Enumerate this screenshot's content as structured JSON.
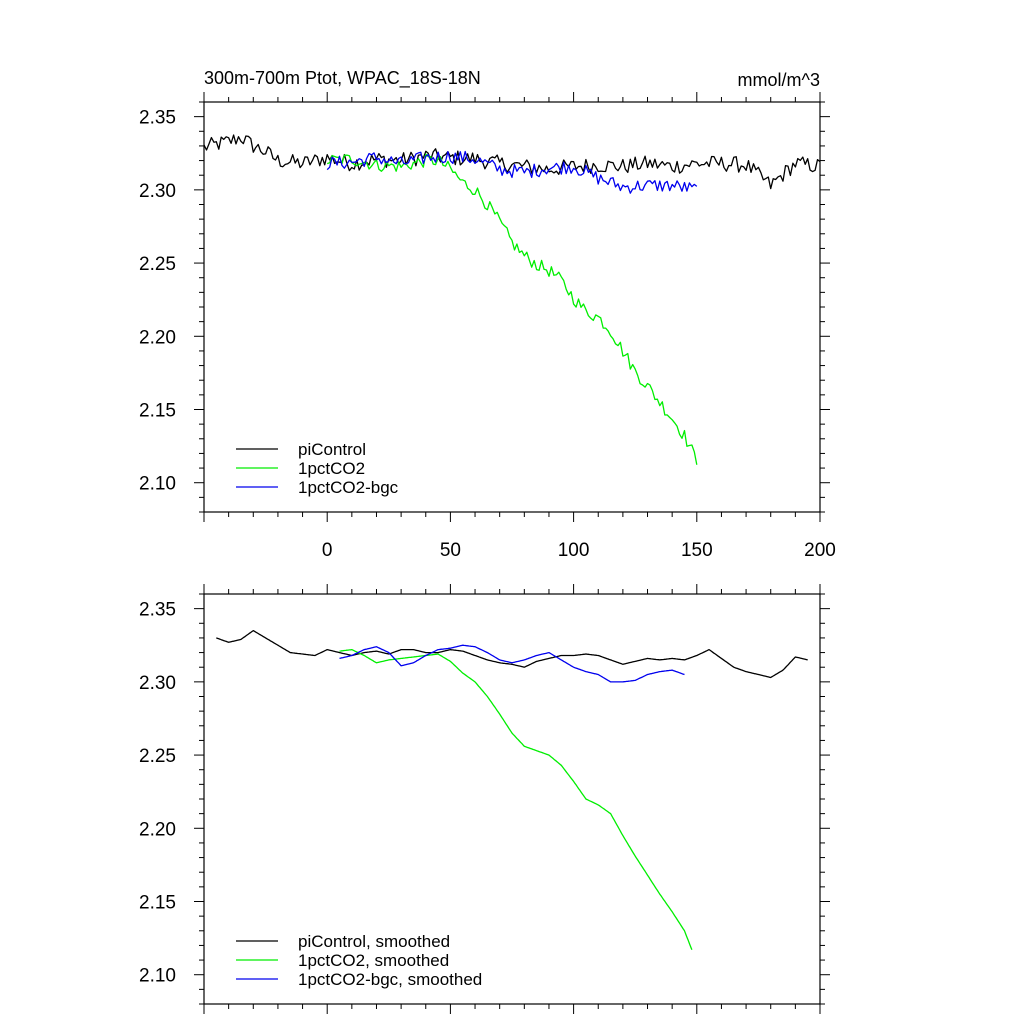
{
  "figure": {
    "title": "300m-700m Ptot, WPAC_18S-18N",
    "units": "mmol/m^3"
  },
  "colors": {
    "piControl": "#000000",
    "1pctCO2": "#00ee00",
    "1pctCO2-bgc": "#0000ee"
  },
  "chart_data": [
    {
      "type": "line",
      "title": "300m-700m Ptot, WPAC_18S-18N",
      "units_label": "mmol/m^3",
      "xlabel": "",
      "ylabel": "",
      "xlim": [
        -50,
        200
      ],
      "ylim": [
        2.08,
        2.36
      ],
      "x_ticks": [
        "0",
        "50",
        "100",
        "150",
        "200"
      ],
      "y_ticks": [
        "2.35",
        "2.30",
        "2.25",
        "2.20",
        "2.15",
        "2.10"
      ],
      "legend_position": "bottom-left",
      "series": [
        {
          "name": "piControl",
          "color_key": "piControl",
          "style": "noisy",
          "x": [
            -50,
            -40,
            -35,
            -30,
            -25,
            -20,
            -10,
            0,
            10,
            20,
            30,
            40,
            50,
            60,
            70,
            80,
            90,
            100,
            110,
            120,
            130,
            140,
            150,
            160,
            170,
            180,
            190,
            200
          ],
          "y": [
            2.329,
            2.333,
            2.336,
            2.33,
            2.326,
            2.32,
            2.318,
            2.322,
            2.318,
            2.321,
            2.32,
            2.323,
            2.322,
            2.321,
            2.318,
            2.316,
            2.314,
            2.316,
            2.317,
            2.316,
            2.318,
            2.316,
            2.318,
            2.318,
            2.317,
            2.303,
            2.318,
            2.316
          ],
          "noise": 0.0055
        },
        {
          "name": "1pctCO2",
          "color_key": "1pctCO2",
          "style": "noisy",
          "x": [
            0,
            10,
            20,
            30,
            40,
            45,
            50,
            55,
            60,
            65,
            70,
            75,
            80,
            85,
            90,
            95,
            100,
            105,
            110,
            115,
            120,
            125,
            130,
            135,
            140,
            145,
            150
          ],
          "y": [
            2.32,
            2.321,
            2.317,
            2.316,
            2.32,
            2.32,
            2.314,
            2.305,
            2.3,
            2.29,
            2.278,
            2.264,
            2.255,
            2.249,
            2.245,
            2.238,
            2.226,
            2.217,
            2.213,
            2.204,
            2.19,
            2.176,
            2.166,
            2.155,
            2.144,
            2.132,
            2.115
          ],
          "noise": 0.0045
        },
        {
          "name": "1pctCO2-bgc",
          "color_key": "1pctCO2-bgc",
          "style": "noisy",
          "x": [
            0,
            10,
            20,
            30,
            40,
            50,
            60,
            70,
            80,
            90,
            100,
            110,
            120,
            130,
            140,
            150
          ],
          "y": [
            2.318,
            2.319,
            2.322,
            2.318,
            2.322,
            2.323,
            2.321,
            2.314,
            2.312,
            2.315,
            2.316,
            2.308,
            2.302,
            2.303,
            2.303,
            2.3
          ],
          "noise": 0.0048
        }
      ],
      "legend": [
        "piControl",
        "1pctCO2",
        "1pctCO2-bgc"
      ]
    },
    {
      "type": "line",
      "title": "",
      "xlabel": "",
      "ylabel": "",
      "xlim": [
        -50,
        200
      ],
      "ylim": [
        2.08,
        2.36
      ],
      "x_ticks": [],
      "y_ticks": [
        "2.35",
        "2.30",
        "2.25",
        "2.20",
        "2.15",
        "2.10"
      ],
      "legend_position": "bottom-left",
      "series": [
        {
          "name": "piControl, smoothed",
          "color_key": "piControl",
          "style": "smooth",
          "x": [
            -45,
            -40,
            -35,
            -30,
            -25,
            -20,
            -15,
            -10,
            -5,
            0,
            5,
            10,
            15,
            20,
            25,
            30,
            35,
            40,
            45,
            50,
            55,
            60,
            65,
            70,
            75,
            80,
            85,
            90,
            95,
            100,
            105,
            110,
            115,
            120,
            125,
            130,
            135,
            140,
            145,
            150,
            155,
            160,
            165,
            170,
            175,
            180,
            185,
            190,
            195
          ],
          "y": [
            2.33,
            2.327,
            2.329,
            2.335,
            2.33,
            2.325,
            2.32,
            2.319,
            2.318,
            2.322,
            2.32,
            2.318,
            2.32,
            2.321,
            2.319,
            2.322,
            2.322,
            2.32,
            2.32,
            2.322,
            2.321,
            2.318,
            2.315,
            2.313,
            2.312,
            2.31,
            2.314,
            2.316,
            2.318,
            2.318,
            2.319,
            2.318,
            2.315,
            2.312,
            2.314,
            2.316,
            2.315,
            2.316,
            2.315,
            2.318,
            2.322,
            2.316,
            2.31,
            2.307,
            2.305,
            2.303,
            2.308,
            2.317,
            2.315
          ]
        },
        {
          "name": "1pctCO2, smoothed",
          "color_key": "1pctCO2",
          "style": "smooth",
          "x": [
            5,
            10,
            15,
            20,
            25,
            30,
            35,
            40,
            45,
            50,
            55,
            60,
            65,
            70,
            75,
            80,
            85,
            90,
            95,
            100,
            105,
            110,
            115,
            120,
            125,
            130,
            135,
            140,
            145,
            148
          ],
          "y": [
            2.321,
            2.322,
            2.318,
            2.313,
            2.315,
            2.316,
            2.317,
            2.318,
            2.319,
            2.314,
            2.306,
            2.3,
            2.29,
            2.278,
            2.265,
            2.256,
            2.253,
            2.25,
            2.243,
            2.232,
            2.22,
            2.216,
            2.21,
            2.195,
            2.181,
            2.168,
            2.155,
            2.143,
            2.13,
            2.117
          ]
        },
        {
          "name": "1pctCO2-bgc, smoothed",
          "color_key": "1pctCO2-bgc",
          "style": "smooth",
          "x": [
            5,
            10,
            15,
            20,
            25,
            30,
            35,
            40,
            45,
            50,
            55,
            60,
            65,
            70,
            75,
            80,
            85,
            90,
            95,
            100,
            105,
            110,
            115,
            120,
            125,
            130,
            135,
            140,
            145
          ],
          "y": [
            2.316,
            2.318,
            2.322,
            2.324,
            2.32,
            2.311,
            2.313,
            2.318,
            2.322,
            2.323,
            2.325,
            2.324,
            2.32,
            2.315,
            2.313,
            2.315,
            2.318,
            2.32,
            2.315,
            2.31,
            2.307,
            2.305,
            2.3,
            2.3,
            2.301,
            2.305,
            2.307,
            2.308,
            2.305
          ]
        }
      ],
      "legend": [
        "piControl, smoothed",
        "1pctCO2, smoothed",
        "1pctCO2-bgc, smoothed"
      ]
    }
  ]
}
